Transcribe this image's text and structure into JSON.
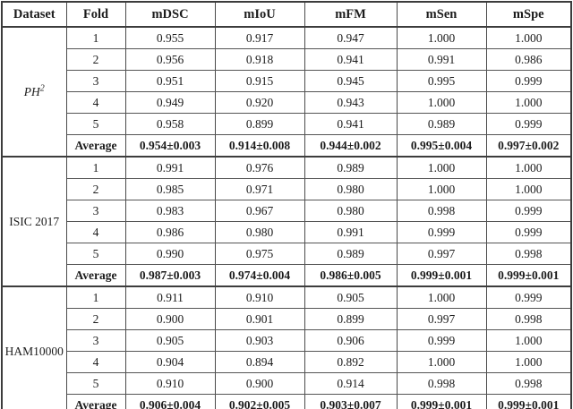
{
  "table": {
    "columns": [
      "Dataset",
      "Fold",
      "mDSC",
      "mIoU",
      "mFM",
      "mSen",
      "mSpe"
    ],
    "groups": [
      {
        "dataset": {
          "text": "PH",
          "sup": "2",
          "italic": true
        },
        "folds": [
          {
            "fold": "1",
            "values": [
              "0.955",
              "0.917",
              "0.947",
              "1.000",
              "1.000"
            ]
          },
          {
            "fold": "2",
            "values": [
              "0.956",
              "0.918",
              "0.941",
              "0.991",
              "0.986"
            ]
          },
          {
            "fold": "3",
            "values": [
              "0.951",
              "0.915",
              "0.945",
              "0.995",
              "0.999"
            ]
          },
          {
            "fold": "4",
            "values": [
              "0.949",
              "0.920",
              "0.943",
              "1.000",
              "1.000"
            ]
          },
          {
            "fold": "5",
            "values": [
              "0.958",
              "0.899",
              "0.941",
              "0.989",
              "0.999"
            ]
          }
        ],
        "average": {
          "label": "Average",
          "values": [
            "0.954±0.003",
            "0.914±0.008",
            "0.944±0.002",
            "0.995±0.004",
            "0.997±0.002"
          ]
        }
      },
      {
        "dataset": {
          "text": "ISIC 2017",
          "sup": "",
          "italic": false
        },
        "folds": [
          {
            "fold": "1",
            "values": [
              "0.991",
              "0.976",
              "0.989",
              "1.000",
              "1.000"
            ]
          },
          {
            "fold": "2",
            "values": [
              "0.985",
              "0.971",
              "0.980",
              "1.000",
              "1.000"
            ]
          },
          {
            "fold": "3",
            "values": [
              "0.983",
              "0.967",
              "0.980",
              "0.998",
              "0.999"
            ]
          },
          {
            "fold": "4",
            "values": [
              "0.986",
              "0.980",
              "0.991",
              "0.999",
              "0.999"
            ]
          },
          {
            "fold": "5",
            "values": [
              "0.990",
              "0.975",
              "0.989",
              "0.997",
              "0.998"
            ]
          }
        ],
        "average": {
          "label": "Average",
          "values": [
            "0.987±0.003",
            "0.974±0.004",
            "0.986±0.005",
            "0.999±0.001",
            "0.999±0.001"
          ]
        }
      },
      {
        "dataset": {
          "text": "HAM10000",
          "sup": "",
          "italic": false
        },
        "folds": [
          {
            "fold": "1",
            "values": [
              "0.911",
              "0.910",
              "0.905",
              "1.000",
              "0.999"
            ]
          },
          {
            "fold": "2",
            "values": [
              "0.900",
              "0.901",
              "0.899",
              "0.997",
              "0.998"
            ]
          },
          {
            "fold": "3",
            "values": [
              "0.905",
              "0.903",
              "0.906",
              "0.999",
              "1.000"
            ]
          },
          {
            "fold": "4",
            "values": [
              "0.904",
              "0.894",
              "0.892",
              "1.000",
              "1.000"
            ]
          },
          {
            "fold": "5",
            "values": [
              "0.910",
              "0.900",
              "0.914",
              "0.998",
              "0.998"
            ]
          }
        ],
        "average": {
          "label": "Average",
          "values": [
            "0.906±0.004",
            "0.902±0.005",
            "0.903±0.007",
            "0.999±0.001",
            "0.999±0.001"
          ]
        }
      }
    ]
  },
  "colors": {
    "border_outer": "#3c3c3c",
    "border_inner": "#4a4a4a",
    "text": "#1c1c1c",
    "background": "#ffffff"
  }
}
